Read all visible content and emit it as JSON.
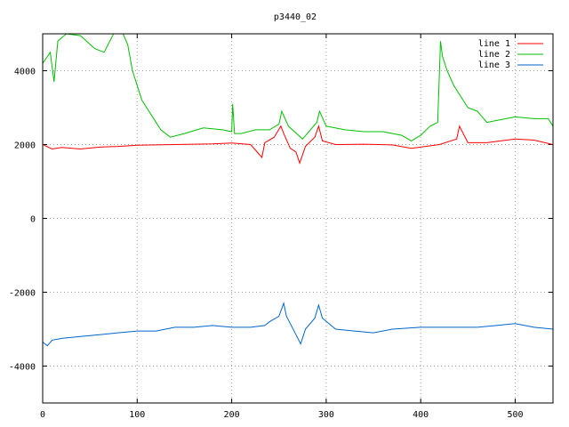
{
  "chart_data": {
    "type": "line",
    "title": "p3440_02",
    "xlabel": "",
    "ylabel": "",
    "xlim": [
      0,
      540
    ],
    "ylim": [
      -5000,
      5000
    ],
    "xticks": [
      0,
      100,
      200,
      300,
      400,
      500
    ],
    "yticks": [
      -4000,
      -2000,
      0,
      2000,
      4000
    ],
    "grid": true,
    "legend_position": "top-right",
    "series": [
      {
        "name": "line 1",
        "color": "#ff0000",
        "x": [
          0,
          10,
          20,
          40,
          60,
          80,
          100,
          120,
          140,
          160,
          180,
          200,
          220,
          232,
          235,
          245,
          252,
          255,
          262,
          268,
          272,
          278,
          288,
          292,
          296,
          310,
          340,
          370,
          390,
          420,
          438,
          441,
          450,
          470,
          500,
          520,
          540
        ],
        "y": [
          2000,
          1880,
          1920,
          1880,
          1930,
          1950,
          1980,
          1990,
          2000,
          2010,
          2020,
          2040,
          2000,
          1650,
          2050,
          2200,
          2500,
          2300,
          1900,
          1800,
          1500,
          1950,
          2200,
          2500,
          2100,
          2000,
          2010,
          1990,
          1900,
          2000,
          2150,
          2500,
          2050,
          2050,
          2150,
          2120,
          2000
        ]
      },
      {
        "name": "line 2",
        "color": "#00c000",
        "x": [
          0,
          8,
          12,
          16,
          25,
          40,
          55,
          65,
          75,
          85,
          90,
          95,
          105,
          115,
          125,
          135,
          150,
          170,
          190,
          200,
          201,
          203,
          210,
          225,
          240,
          250,
          253,
          260,
          275,
          290,
          293,
          300,
          320,
          340,
          360,
          380,
          390,
          400,
          410,
          418,
          421,
          423,
          428,
          435,
          450,
          460,
          470,
          480,
          500,
          520,
          535,
          540
        ],
        "y": [
          4200,
          4500,
          3700,
          4800,
          5000,
          4950,
          4600,
          4500,
          5000,
          5000,
          4700,
          4000,
          3200,
          2800,
          2400,
          2200,
          2300,
          2450,
          2400,
          2350,
          3100,
          2300,
          2300,
          2400,
          2400,
          2550,
          2900,
          2500,
          2150,
          2600,
          2900,
          2500,
          2400,
          2350,
          2350,
          2250,
          2100,
          2250,
          2500,
          2600,
          4800,
          4400,
          4000,
          3600,
          3000,
          2900,
          2600,
          2650,
          2750,
          2700,
          2700,
          2500
        ]
      },
      {
        "name": "line 3",
        "color": "#0066cc",
        "x": [
          0,
          5,
          10,
          20,
          40,
          60,
          80,
          100,
          120,
          140,
          160,
          180,
          200,
          220,
          235,
          240,
          250,
          255,
          258,
          262,
          268,
          273,
          278,
          288,
          292,
          296,
          310,
          330,
          350,
          370,
          400,
          430,
          460,
          480,
          500,
          520,
          540
        ],
        "y": [
          -3350,
          -3450,
          -3300,
          -3250,
          -3200,
          -3150,
          -3100,
          -3050,
          -3050,
          -2950,
          -2950,
          -2900,
          -2950,
          -2950,
          -2900,
          -2800,
          -2650,
          -2300,
          -2650,
          -2850,
          -3150,
          -3400,
          -3000,
          -2700,
          -2350,
          -2700,
          -3000,
          -3050,
          -3100,
          -3000,
          -2950,
          -2950,
          -2950,
          -2900,
          -2850,
          -2950,
          -3000
        ]
      }
    ]
  }
}
